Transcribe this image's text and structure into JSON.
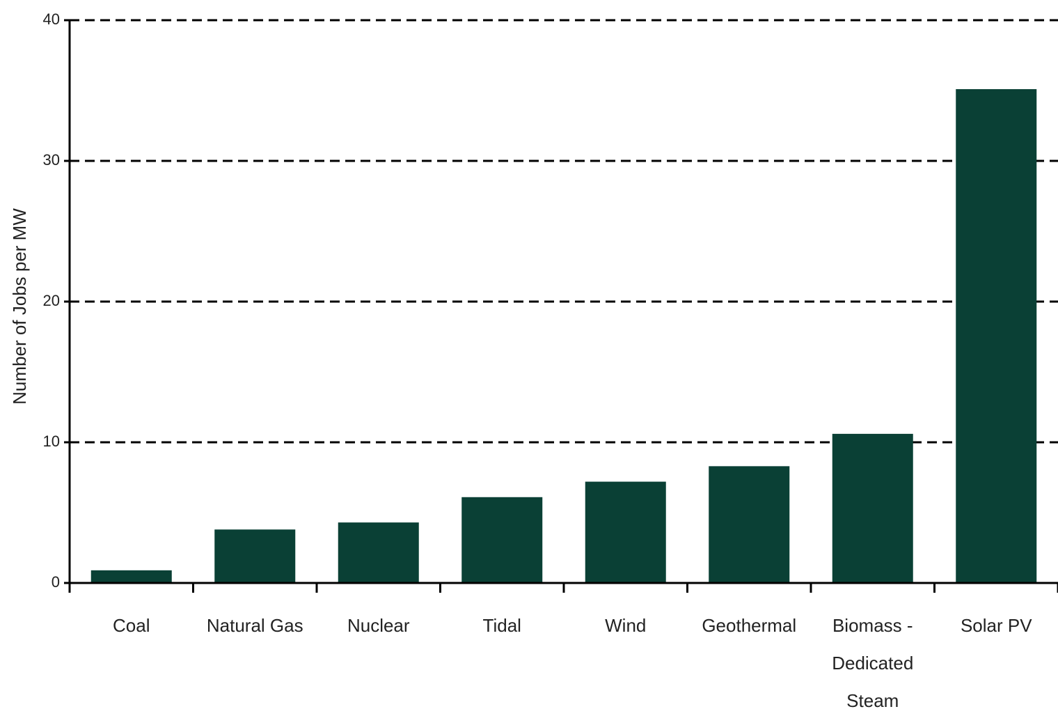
{
  "chart_data": {
    "type": "bar",
    "y_label": "Number of Jobs per MW",
    "categories": [
      "Coal",
      "Natural Gas",
      "Nuclear",
      "Tidal",
      "Wind",
      "Geothermal",
      "Biomass - Dedicated Steam",
      "Solar PV"
    ],
    "values": [
      0.9,
      3.8,
      4.3,
      6.1,
      7.2,
      8.3,
      10.6,
      35.1
    ],
    "color": "#0a4035",
    "ylim": [
      0,
      40
    ],
    "yticks": [
      0,
      10,
      20,
      30,
      40
    ],
    "grid": true
  }
}
